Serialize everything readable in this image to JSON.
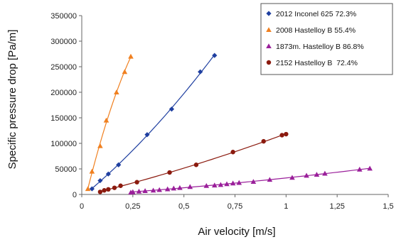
{
  "chart_data": {
    "type": "scatter",
    "xlabel": "Air velocity [m/s]",
    "ylabel": "Specific pressure drop [Pa/m]",
    "xlim": [
      0,
      1.5
    ],
    "ylim": [
      0,
      350000
    ],
    "x_ticks": [
      0,
      0.25,
      0.5,
      0.75,
      1,
      1.25,
      1.5
    ],
    "x_tick_labels": [
      "0",
      "0,25",
      "0,5",
      "0,75",
      "1",
      "1,25",
      "1,5"
    ],
    "y_ticks": [
      0,
      50000,
      100000,
      150000,
      200000,
      250000,
      300000,
      350000
    ],
    "y_tick_labels": [
      "0",
      "50000",
      "100000",
      "150000",
      "200000",
      "250000",
      "300000",
      "350000"
    ],
    "grid": false,
    "legend_position": "top-right",
    "trendlines": true,
    "series": [
      {
        "name": "2012 Inconel 625 72.3%",
        "marker": "diamond",
        "color": "#1f3fa0",
        "x": [
          0.05,
          0.09,
          0.13,
          0.18,
          0.32,
          0.44,
          0.58,
          0.65
        ],
        "y": [
          11000,
          27000,
          40000,
          58000,
          117000,
          167000,
          240000,
          272000
        ]
      },
      {
        "name": "2008 Hastelloy B 55.4%",
        "marker": "triangle",
        "color": "#f08020",
        "x": [
          0.03,
          0.05,
          0.09,
          0.12,
          0.17,
          0.21,
          0.24
        ],
        "y": [
          11000,
          45000,
          95000,
          145000,
          200000,
          240000,
          270000
        ]
      },
      {
        "name": "1873m. Hastelloy B 86.8%",
        "marker": "triangle",
        "color": "#9a1f9a",
        "x": [
          0.24,
          0.25,
          0.28,
          0.31,
          0.35,
          0.38,
          0.42,
          0.45,
          0.48,
          0.53,
          0.61,
          0.65,
          0.68,
          0.71,
          0.74,
          0.77,
          0.84,
          0.92,
          1.03,
          1.1,
          1.15,
          1.19,
          1.36,
          1.41
        ],
        "y": [
          4000,
          5000,
          6000,
          7000,
          8000,
          9000,
          10500,
          12000,
          13000,
          15000,
          17000,
          18000,
          19000,
          20500,
          22000,
          23000,
          25000,
          29000,
          33000,
          37000,
          39000,
          41000,
          49000,
          51000
        ]
      },
      {
        "name": "2152 Hastelloy B  72.4%",
        "marker": "circle",
        "color": "#8b1a0e",
        "x": [
          0.09,
          0.11,
          0.13,
          0.16,
          0.19,
          0.27,
          0.43,
          0.56,
          0.74,
          0.89,
          0.98,
          1.0
        ],
        "y": [
          5000,
          8000,
          10000,
          13000,
          17000,
          24000,
          43000,
          58000,
          83000,
          104000,
          116000,
          118000
        ]
      }
    ]
  }
}
